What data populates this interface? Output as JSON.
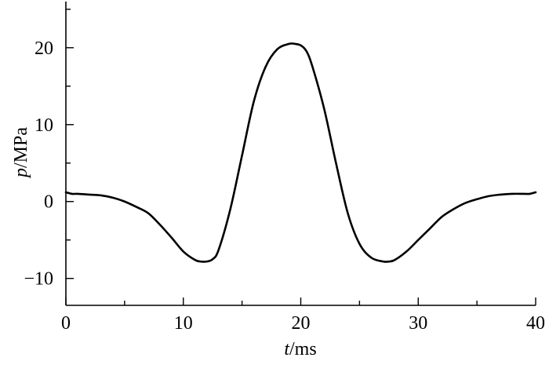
{
  "chart_data": {
    "type": "line",
    "title": "",
    "xlabel_var": "t",
    "xlabel_unit": "/ms",
    "ylabel_var": "p",
    "ylabel_unit": "/MPa",
    "xlim": [
      0,
      40
    ],
    "ylim": [
      -13.5,
      26
    ],
    "xticks": [
      0,
      10,
      20,
      30,
      40
    ],
    "xtick_labels": [
      "0",
      "10",
      "20",
      "30",
      "40"
    ],
    "yticks": [
      -10,
      0,
      10,
      20
    ],
    "ytick_labels": [
      "−10",
      "0",
      "10",
      "20"
    ],
    "grid": false,
    "series": [
      {
        "x": [
          0,
          0.5,
          1,
          2,
          3,
          4,
          5,
          6,
          7,
          8,
          9,
          10,
          11,
          11.5,
          12,
          12.5,
          13,
          14,
          15,
          16,
          17,
          18,
          19,
          19.5,
          20,
          20.5,
          21,
          22,
          23,
          24,
          25,
          26,
          27,
          27.5,
          28,
          29,
          30,
          31,
          32,
          33,
          34,
          35,
          36,
          37,
          38,
          39,
          39.5,
          40
        ],
        "y": [
          1.2,
          1.0,
          1.0,
          0.9,
          0.8,
          0.5,
          0.0,
          -0.7,
          -1.5,
          -3.0,
          -4.7,
          -6.5,
          -7.6,
          -7.8,
          -7.8,
          -7.5,
          -6.3,
          -1.0,
          6.0,
          13.0,
          17.5,
          19.8,
          20.5,
          20.5,
          20.3,
          19.5,
          17.5,
          12.0,
          5.0,
          -1.5,
          -5.5,
          -7.3,
          -7.8,
          -7.8,
          -7.6,
          -6.5,
          -5.0,
          -3.5,
          -2.0,
          -1.0,
          -0.2,
          0.3,
          0.7,
          0.9,
          1.0,
          1.0,
          1.0,
          1.2
        ]
      }
    ]
  }
}
